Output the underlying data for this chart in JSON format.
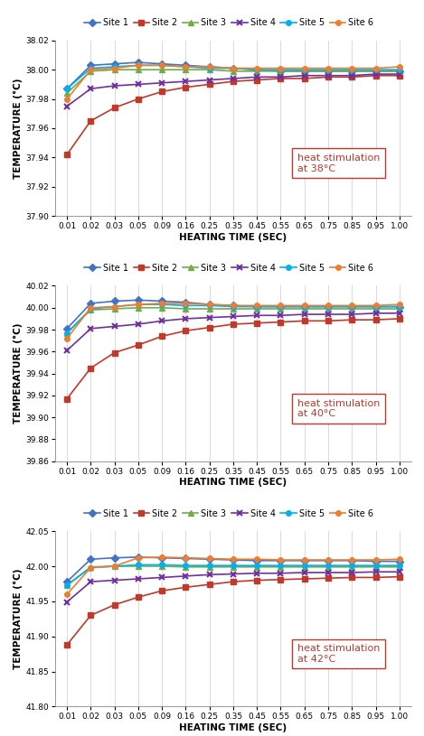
{
  "x": [
    0.01,
    0.02,
    0.03,
    0.05,
    0.09,
    0.16,
    0.25,
    0.35,
    0.45,
    0.55,
    0.65,
    0.75,
    0.85,
    0.95,
    1.0
  ],
  "charts": [
    {
      "annotation": "heat stimulation\nat 38°C",
      "ylim": [
        37.9,
        38.02
      ],
      "yticks": [
        37.9,
        37.92,
        37.94,
        37.96,
        37.98,
        38.0,
        38.02
      ],
      "series": {
        "Site 1": [
          37.987,
          38.003,
          38.004,
          38.005,
          38.004,
          38.003,
          38.002,
          38.001,
          38.0,
          37.999,
          37.999,
          37.999,
          37.999,
          37.999,
          37.999
        ],
        "Site 2": [
          37.942,
          37.965,
          37.974,
          37.98,
          37.985,
          37.988,
          37.99,
          37.992,
          37.993,
          37.994,
          37.994,
          37.995,
          37.995,
          37.996,
          37.996
        ],
        "Site 3": [
          37.984,
          37.999,
          38.0,
          38.0,
          38.0,
          38.0,
          38.0,
          37.999,
          37.999,
          37.999,
          37.999,
          37.999,
          37.999,
          37.999,
          37.999
        ],
        "Site 4": [
          37.975,
          37.987,
          37.989,
          37.99,
          37.991,
          37.992,
          37.993,
          37.994,
          37.995,
          37.995,
          37.996,
          37.996,
          37.996,
          37.997,
          37.997
        ],
        "Site 5": [
          37.987,
          38.001,
          38.002,
          38.003,
          38.003,
          38.002,
          38.001,
          38.001,
          38.0,
          38.0,
          38.0,
          38.0,
          38.0,
          38.0,
          38.0
        ],
        "Site 6": [
          37.98,
          38.0,
          38.001,
          38.003,
          38.003,
          38.002,
          38.002,
          38.001,
          38.001,
          38.001,
          38.001,
          38.001,
          38.001,
          38.001,
          38.002
        ]
      }
    },
    {
      "annotation": "heat stimulation\nat 40°C",
      "ylim": [
        39.86,
        40.02
      ],
      "yticks": [
        39.86,
        39.88,
        39.9,
        39.92,
        39.94,
        39.96,
        39.98,
        40.0,
        40.02
      ],
      "series": {
        "Site 1": [
          39.981,
          40.004,
          40.006,
          40.007,
          40.006,
          40.005,
          40.003,
          40.002,
          40.001,
          40.001,
          40.001,
          40.001,
          40.001,
          40.001,
          40.001
        ],
        "Site 2": [
          39.917,
          39.945,
          39.959,
          39.966,
          39.974,
          39.979,
          39.982,
          39.985,
          39.986,
          39.987,
          39.988,
          39.988,
          39.989,
          39.989,
          39.99
        ],
        "Site 3": [
          39.977,
          39.998,
          39.999,
          40.0,
          40.0,
          39.999,
          39.999,
          39.999,
          39.999,
          39.999,
          39.999,
          39.999,
          39.999,
          39.999,
          39.999
        ],
        "Site 4": [
          39.961,
          39.981,
          39.983,
          39.985,
          39.988,
          39.99,
          39.991,
          39.992,
          39.993,
          39.993,
          39.994,
          39.994,
          39.994,
          39.995,
          39.995
        ],
        "Site 5": [
          39.977,
          39.999,
          40.001,
          40.003,
          40.003,
          40.002,
          40.002,
          40.001,
          40.001,
          40.001,
          40.001,
          40.001,
          40.001,
          40.001,
          40.001
        ],
        "Site 6": [
          39.972,
          40.0,
          40.001,
          40.003,
          40.004,
          40.004,
          40.003,
          40.002,
          40.002,
          40.002,
          40.002,
          40.002,
          40.002,
          40.002,
          40.003
        ]
      }
    },
    {
      "annotation": "heat stimulation\nat 42°C",
      "ylim": [
        41.8,
        42.05
      ],
      "yticks": [
        41.8,
        41.85,
        41.9,
        41.95,
        42.0,
        42.05
      ],
      "series": {
        "Site 1": [
          41.978,
          42.01,
          42.012,
          42.013,
          42.012,
          42.011,
          42.01,
          42.009,
          42.008,
          42.008,
          42.008,
          42.008,
          42.008,
          42.007,
          42.007
        ],
        "Site 2": [
          41.888,
          41.93,
          41.945,
          41.956,
          41.965,
          41.97,
          41.974,
          41.978,
          41.98,
          41.981,
          41.982,
          41.983,
          41.984,
          41.984,
          41.985
        ],
        "Site 3": [
          41.973,
          41.999,
          42.0,
          42.0,
          42.0,
          41.999,
          41.999,
          41.999,
          41.999,
          41.999,
          41.999,
          41.999,
          41.999,
          41.999,
          41.999
        ],
        "Site 4": [
          41.949,
          41.978,
          41.98,
          41.982,
          41.984,
          41.986,
          41.988,
          41.989,
          41.99,
          41.99,
          41.991,
          41.991,
          41.991,
          41.992,
          41.992
        ],
        "Site 5": [
          41.973,
          41.998,
          42.0,
          42.002,
          42.002,
          42.001,
          42.001,
          42.001,
          42.001,
          42.001,
          42.001,
          42.001,
          42.001,
          42.001,
          42.001
        ],
        "Site 6": [
          41.96,
          41.998,
          42.0,
          42.012,
          42.013,
          42.012,
          42.011,
          42.01,
          42.01,
          42.009,
          42.009,
          42.009,
          42.009,
          42.009,
          42.01
        ]
      }
    }
  ],
  "site_colors": {
    "Site 1": "#4472C4",
    "Site 2": "#C0392B",
    "Site 3": "#70AD47",
    "Site 4": "#7030A0",
    "Site 5": "#00B0F0",
    "Site 6": "#ED7D31"
  },
  "site_markers": {
    "Site 1": "D",
    "Site 2": "s",
    "Site 3": "^",
    "Site 4": "x",
    "Site 5": "o",
    "Site 6": "o"
  },
  "xlabel": "HEATING TIME (SEC)",
  "ylabel": "TEMPERATURE (°C)",
  "annotation_color": "#C0392B",
  "annotation_fontsize": 8,
  "legend_fontsize": 7,
  "axis_fontsize": 6.5,
  "label_fontsize": 7.5
}
